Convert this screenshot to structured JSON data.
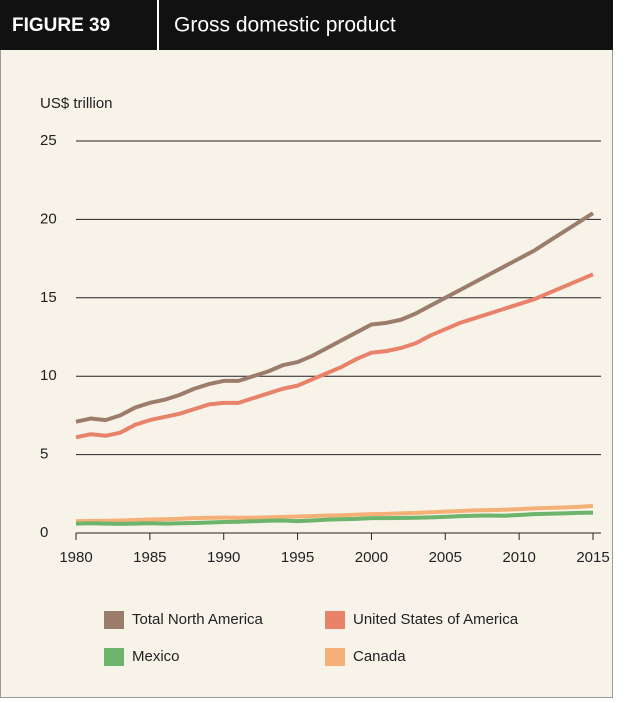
{
  "chart_data": {
    "type": "line",
    "figure_label": "FIGURE 39",
    "title": "Gross domestic product",
    "ylabel": "US$ trillion",
    "x": [
      1980,
      1981,
      1982,
      1983,
      1984,
      1985,
      1986,
      1987,
      1988,
      1989,
      1990,
      1991,
      1992,
      1993,
      1994,
      1995,
      1996,
      1997,
      1998,
      1999,
      2000,
      2001,
      2002,
      2003,
      2004,
      2005,
      2006,
      2007,
      2008,
      2009,
      2010,
      2011,
      2012,
      2013,
      2014,
      2015
    ],
    "xlim": [
      1980,
      2015
    ],
    "xticks": [
      1980,
      1985,
      1990,
      1995,
      2000,
      2005,
      2010,
      2015
    ],
    "ylim": [
      0,
      25
    ],
    "yticks": [
      0,
      5,
      10,
      15,
      20,
      25
    ],
    "grid": true,
    "series": [
      {
        "name": "Total North America",
        "color": "#9c7d6b",
        "values": [
          7.1,
          7.3,
          7.2,
          7.5,
          8.0,
          8.3,
          8.5,
          8.8,
          9.2,
          9.5,
          9.7,
          9.7,
          10.0,
          10.3,
          10.7,
          10.9,
          11.3,
          11.8,
          12.3,
          12.8,
          13.3,
          13.4,
          13.6,
          14.0,
          14.5,
          15.0,
          15.5,
          16.0,
          16.5,
          17.0,
          17.5,
          18.0,
          18.6,
          19.2,
          19.8,
          20.4
        ]
      },
      {
        "name": "United States of America",
        "color": "#e8826a",
        "values": [
          6.1,
          6.3,
          6.2,
          6.4,
          6.9,
          7.2,
          7.4,
          7.6,
          7.9,
          8.2,
          8.3,
          8.3,
          8.6,
          8.9,
          9.2,
          9.4,
          9.8,
          10.2,
          10.6,
          11.1,
          11.5,
          11.6,
          11.8,
          12.1,
          12.6,
          13.0,
          13.4,
          13.7,
          14.0,
          14.3,
          14.6,
          14.9,
          15.3,
          15.7,
          16.1,
          16.5
        ]
      },
      {
        "name": "Mexico",
        "color": "#6db56d",
        "values": [
          0.6,
          0.62,
          0.6,
          0.58,
          0.6,
          0.62,
          0.6,
          0.62,
          0.64,
          0.67,
          0.7,
          0.72,
          0.75,
          0.78,
          0.8,
          0.76,
          0.8,
          0.85,
          0.88,
          0.9,
          0.95,
          0.95,
          0.96,
          0.97,
          1.0,
          1.03,
          1.08,
          1.1,
          1.12,
          1.1,
          1.15,
          1.2,
          1.23,
          1.25,
          1.28,
          1.3
        ]
      },
      {
        "name": "Canada",
        "color": "#f5b077",
        "values": [
          0.75,
          0.77,
          0.77,
          0.8,
          0.83,
          0.86,
          0.88,
          0.91,
          0.95,
          0.97,
          0.98,
          0.97,
          0.98,
          1.0,
          1.03,
          1.05,
          1.08,
          1.12,
          1.13,
          1.17,
          1.2,
          1.22,
          1.25,
          1.28,
          1.32,
          1.36,
          1.4,
          1.44,
          1.46,
          1.48,
          1.52,
          1.57,
          1.6,
          1.63,
          1.67,
          1.72
        ]
      }
    ]
  }
}
